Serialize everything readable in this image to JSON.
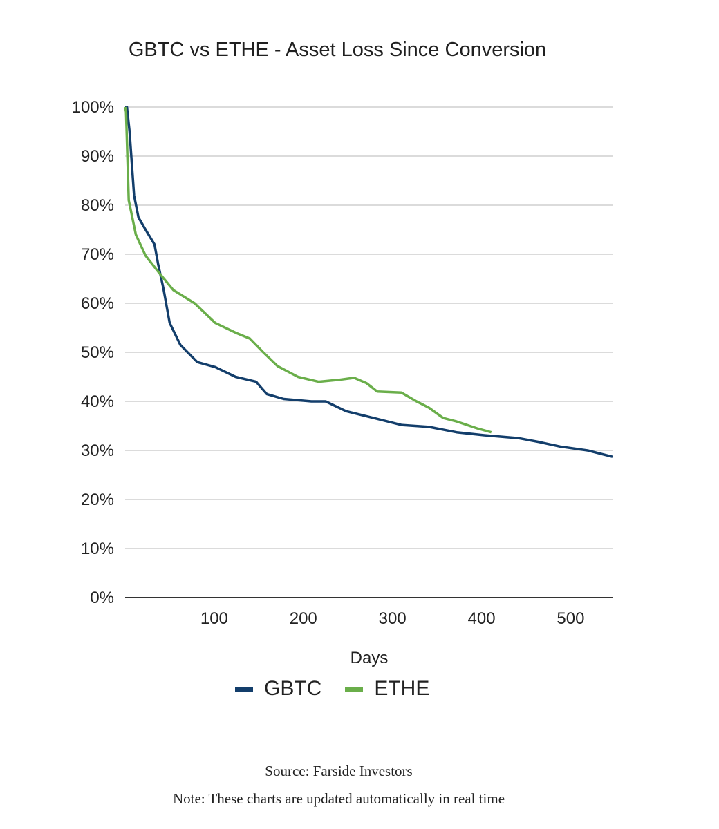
{
  "chart_data": {
    "type": "line",
    "title": "GBTC vs ETHE - Asset Loss Since Conversion",
    "xlabel": "Days",
    "ylabel": "",
    "xlim": [
      0,
      547
    ],
    "ylim": [
      0,
      100
    ],
    "x_ticks": [
      100,
      200,
      300,
      400,
      500
    ],
    "y_ticks": [
      "0%",
      "10%",
      "20%",
      "30%",
      "40%",
      "50%",
      "60%",
      "70%",
      "80%",
      "90%",
      "100%"
    ],
    "grid": true,
    "legend_position": "bottom",
    "series": [
      {
        "name": "GBTC",
        "color": "#133e6b",
        "x": [
          0,
          2,
          5,
          10,
          15,
          23,
          33,
          37,
          43,
          50,
          62,
          81,
          101,
          124,
          147,
          159,
          178,
          209,
          225,
          248,
          279,
          310,
          341,
          372,
          403,
          442,
          465,
          488,
          519,
          547
        ],
        "y": [
          100,
          100,
          95,
          82,
          77.5,
          75,
          72,
          68,
          63,
          56,
          51.5,
          48,
          47,
          45,
          44,
          41.5,
          40.5,
          40,
          40,
          38,
          36.6,
          35.2,
          34.8,
          33.7,
          33.1,
          32.5,
          31.7,
          30.8,
          30,
          28.7
        ]
      },
      {
        "name": "ETHE",
        "color": "#6aae4a",
        "x": [
          0,
          1,
          4,
          12,
          23,
          39,
          54,
          78,
          101,
          124,
          140,
          155,
          171,
          194,
          217,
          240,
          257,
          271,
          283,
          310,
          326,
          341,
          357,
          372,
          395,
          411
        ],
        "y": [
          100,
          99,
          81,
          74,
          69.7,
          66,
          62.7,
          60,
          56,
          54,
          52.8,
          50,
          47.2,
          45,
          44,
          44.4,
          44.8,
          43.7,
          42,
          41.8,
          40.1,
          38.7,
          36.6,
          35.9,
          34.5,
          33.7
        ]
      }
    ]
  },
  "footer": {
    "source": "Source: Farside Investors",
    "note": "Note: These charts are updated automatically in real time"
  }
}
